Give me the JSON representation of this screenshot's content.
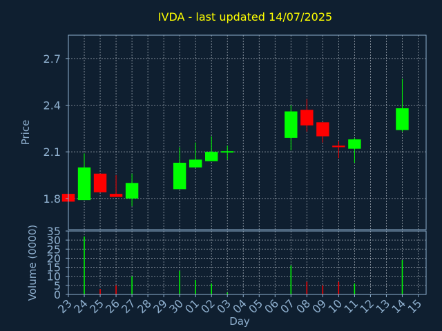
{
  "chart_data": [
    {
      "type": "candlestick",
      "title": "IVDA - last updated 14/07/2025",
      "ylabel": "Price",
      "ylim": [
        1.6,
        2.85
      ],
      "yticks": [
        "1.8",
        "2.1",
        "2.4",
        "2.7"
      ],
      "ytick_values": [
        1.8,
        2.1,
        2.4,
        2.7
      ],
      "grid": true,
      "colors": {
        "up": "#00ff00",
        "down": "#ff0000"
      },
      "candles": [
        {
          "day": "23",
          "open": 1.83,
          "high": 1.83,
          "low": 1.78,
          "close": 1.78
        },
        {
          "day": "24",
          "open": 1.79,
          "high": 2.09,
          "low": 1.79,
          "close": 2.0
        },
        {
          "day": "25",
          "open": 1.96,
          "high": 1.96,
          "low": 1.84,
          "close": 1.84
        },
        {
          "day": "26",
          "open": 1.83,
          "high": 1.95,
          "low": 1.81,
          "close": 1.81
        },
        {
          "day": "27",
          "open": 1.8,
          "high": 1.96,
          "low": 1.75,
          "close": 1.9
        },
        {
          "day": "30",
          "open": 1.86,
          "high": 2.13,
          "low": 1.86,
          "close": 2.03
        },
        {
          "day": "01",
          "open": 2.0,
          "high": 2.16,
          "low": 2.0,
          "close": 2.05
        },
        {
          "day": "02",
          "open": 2.04,
          "high": 2.2,
          "low": 2.04,
          "close": 2.1
        },
        {
          "day": "03",
          "open": 2.1,
          "high": 2.14,
          "low": 2.05,
          "close": 2.1
        },
        {
          "day": "07",
          "open": 2.19,
          "high": 2.4,
          "low": 2.11,
          "close": 2.36
        },
        {
          "day": "08",
          "open": 2.37,
          "high": 2.44,
          "low": 2.23,
          "close": 2.27
        },
        {
          "day": "09",
          "open": 2.29,
          "high": 2.29,
          "low": 2.16,
          "close": 2.2
        },
        {
          "day": "10",
          "open": 2.14,
          "high": 2.17,
          "low": 2.06,
          "close": 2.13
        },
        {
          "day": "11",
          "open": 2.12,
          "high": 2.19,
          "low": 2.03,
          "close": 2.18
        },
        {
          "day": "14",
          "open": 2.24,
          "high": 2.57,
          "low": 2.23,
          "close": 2.38
        }
      ]
    },
    {
      "type": "bar",
      "ylabel": "Volume (0000)",
      "xlabel": "Day",
      "ylim": [
        0,
        35
      ],
      "yticks": [
        "0",
        "5",
        "10",
        "15",
        "20",
        "25",
        "30",
        "35"
      ],
      "ytick_values": [
        0,
        5,
        10,
        15,
        20,
        25,
        30,
        35
      ],
      "categories": [
        "23",
        "24",
        "25",
        "26",
        "27",
        "30",
        "01",
        "02",
        "03",
        "07",
        "08",
        "09",
        "10",
        "11",
        "14"
      ],
      "values": [
        0.3,
        32,
        3,
        5,
        10,
        13,
        8,
        6,
        1,
        16,
        7,
        5,
        7,
        6,
        19
      ]
    }
  ],
  "xaxis": {
    "ticks": [
      "23",
      "24",
      "25",
      "26",
      "27",
      "28",
      "29",
      "30",
      "01",
      "02",
      "03",
      "04",
      "05",
      "06",
      "07",
      "08",
      "09",
      "10",
      "11",
      "12",
      "13",
      "14",
      "15"
    ]
  }
}
